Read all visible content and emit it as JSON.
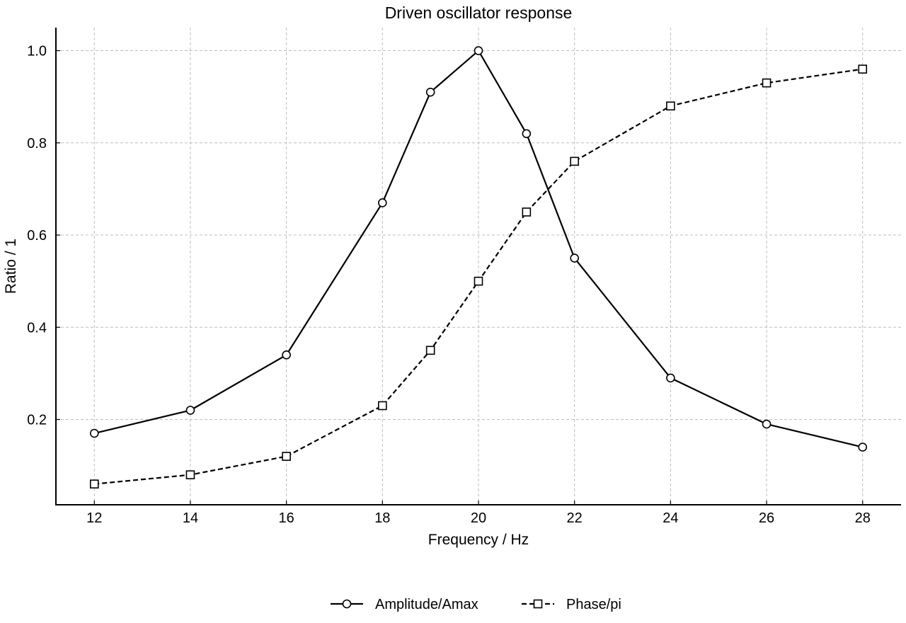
{
  "chart_data": {
    "type": "line",
    "title": "Driven oscillator response",
    "xlabel": "Frequency / Hz",
    "ylabel": "Ratio / 1",
    "xlim": [
      11.2,
      28.8
    ],
    "ylim": [
      0.015,
      1.05
    ],
    "x_ticks": [
      12,
      14,
      16,
      18,
      20,
      22,
      24,
      26,
      28
    ],
    "y_ticks": [
      0.2,
      0.4,
      0.6,
      0.8,
      1.0
    ],
    "x_tick_labels": [
      "12",
      "14",
      "16",
      "18",
      "20",
      "22",
      "24",
      "26",
      "28"
    ],
    "y_tick_labels": [
      "0.2",
      "0.4",
      "0.6",
      "0.8",
      "1.0"
    ],
    "grid": true,
    "legend_position": "bottom-center",
    "x": [
      12,
      14,
      16,
      18,
      19,
      20,
      21,
      22,
      24,
      26,
      28
    ],
    "series": [
      {
        "name": "Amplitude/Amax",
        "marker": "circle",
        "line_style": "solid",
        "color": "#000000",
        "values": [
          0.17,
          0.22,
          0.34,
          0.67,
          0.91,
          1.0,
          0.82,
          0.55,
          0.29,
          0.19,
          0.14
        ]
      },
      {
        "name": "Phase/pi",
        "marker": "square",
        "line_style": "dashed",
        "color": "#000000",
        "values": [
          0.06,
          0.08,
          0.12,
          0.23,
          0.35,
          0.5,
          0.65,
          0.76,
          0.88,
          0.93,
          0.96
        ]
      }
    ]
  }
}
